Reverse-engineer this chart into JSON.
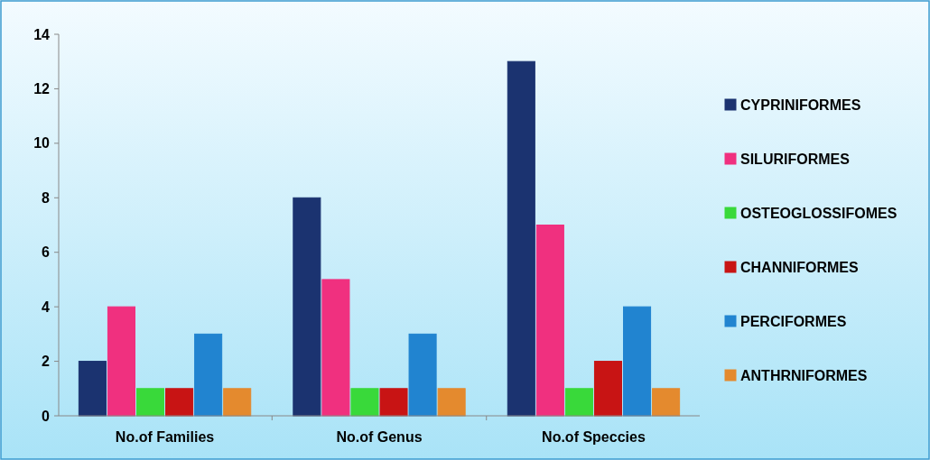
{
  "chart_data": {
    "type": "bar",
    "categories": [
      "No.of Families",
      "No.of Genus",
      "No.of Speccies"
    ],
    "series": [
      {
        "name": "CYPRINIFORMES",
        "color": "#1b3370",
        "values": [
          2,
          8,
          13
        ]
      },
      {
        "name": "SILURIFORMES",
        "color": "#f0307f",
        "values": [
          4,
          5,
          7
        ]
      },
      {
        "name": "OSTEOGLOSSIFOMES",
        "color": "#39d93a",
        "values": [
          1,
          1,
          1
        ]
      },
      {
        "name": "CHANNIFORMES",
        "color": "#c81414",
        "values": [
          1,
          1,
          2
        ]
      },
      {
        "name": "PERCIFORMES",
        "color": "#2184d0",
        "values": [
          3,
          3,
          4
        ]
      },
      {
        "name": "ANTHRNIFORMES",
        "color": "#e48a2e",
        "values": [
          1,
          1,
          1
        ]
      }
    ],
    "ylim": [
      0,
      14
    ],
    "yticks": [
      0,
      2,
      4,
      6,
      8,
      10,
      12,
      14
    ],
    "grid": false,
    "legend": "right"
  }
}
